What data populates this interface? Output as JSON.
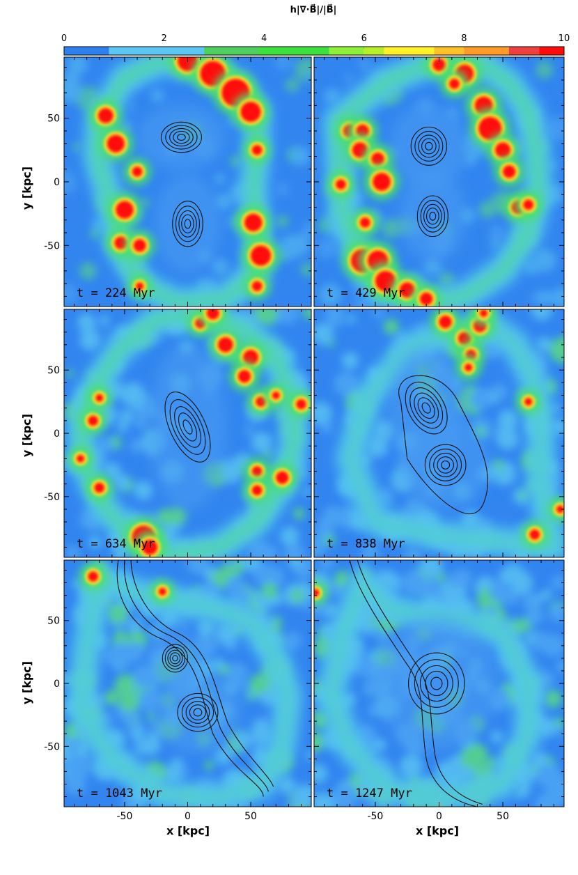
{
  "chart_data": {
    "type": "heatmap",
    "colorbar": {
      "label": "h|∇·B⃗|/|B⃗|",
      "range": [
        0,
        10
      ],
      "tick_labels": [
        "0",
        "2",
        "4",
        "6",
        "8",
        "10"
      ],
      "tick_values": [
        0,
        2,
        4,
        6,
        8,
        10
      ],
      "colors": [
        "#2f80ef",
        "#5cc6f4",
        "#4ecf5f",
        "#3ee03e",
        "#8ef03a",
        "#b7f02a",
        "#fff22a",
        "#ffc12a",
        "#ff9a2c",
        "#ef4040",
        "#ff0b0b"
      ]
    },
    "xlabel": "x [kpc]",
    "ylabel": "y [kpc]",
    "xlim": [
      -98,
      98
    ],
    "ylim": [
      -98,
      98
    ],
    "x_tick_labels": [
      "-50",
      "0",
      "50"
    ],
    "x_tick_values": [
      -50,
      0,
      50
    ],
    "y_tick_labels": [
      "50",
      "0",
      "-50"
    ],
    "y_tick_values": [
      50,
      0,
      -50
    ],
    "panels": [
      {
        "time_label": "t =  224 Myr",
        "cores": [
          {
            "x": -5,
            "y": 35,
            "rx": 16,
            "ry": 12
          },
          {
            "x": 0,
            "y": -33,
            "rx": 12,
            "ry": 18
          }
        ],
        "ring": [
          [
            -70,
            50
          ],
          [
            -72,
            20
          ],
          [
            -60,
            -20
          ],
          [
            -55,
            -50
          ],
          [
            -35,
            -82
          ],
          [
            -8,
            -95
          ],
          [
            30,
            -92
          ],
          [
            55,
            -70
          ],
          [
            55,
            -40
          ],
          [
            52,
            -5
          ],
          [
            55,
            25
          ],
          [
            55,
            55
          ],
          [
            40,
            75
          ],
          [
            10,
            90
          ],
          [
            -20,
            95
          ],
          [
            -50,
            82
          ]
        ],
        "hot_blobs": [
          [
            -65,
            52,
            6
          ],
          [
            -57,
            30,
            7
          ],
          [
            -50,
            -22,
            7
          ],
          [
            -53,
            -48,
            5
          ],
          [
            -38,
            -50,
            5
          ],
          [
            -40,
            8,
            4
          ],
          [
            0,
            95,
            8
          ],
          [
            20,
            85,
            10
          ],
          [
            38,
            70,
            11
          ],
          [
            50,
            55,
            8
          ],
          [
            55,
            25,
            4
          ],
          [
            52,
            -32,
            7
          ],
          [
            58,
            -58,
            8
          ],
          [
            55,
            -82,
            4
          ],
          [
            -38,
            -82,
            3
          ]
        ]
      },
      {
        "time_label": "t =  429 Myr",
        "cores": [
          {
            "x": -8,
            "y": 28,
            "rx": 14,
            "ry": 15
          },
          {
            "x": -5,
            "y": -27,
            "rx": 12,
            "ry": 16
          }
        ],
        "ring": [
          [
            -80,
            48
          ],
          [
            -78,
            10
          ],
          [
            -75,
            -25
          ],
          [
            -65,
            -55
          ],
          [
            -45,
            -85
          ],
          [
            -15,
            -96
          ],
          [
            20,
            -90
          ],
          [
            50,
            -70
          ],
          [
            70,
            -40
          ],
          [
            78,
            -10
          ],
          [
            76,
            25
          ],
          [
            70,
            55
          ],
          [
            55,
            78
          ],
          [
            30,
            95
          ],
          [
            0,
            95
          ],
          [
            -40,
            80
          ]
        ],
        "hot_blobs": [
          [
            0,
            92,
            5
          ],
          [
            20,
            85,
            7
          ],
          [
            12,
            77,
            4
          ],
          [
            35,
            60,
            7
          ],
          [
            40,
            42,
            9
          ],
          [
            50,
            25,
            6
          ],
          [
            55,
            8,
            5
          ],
          [
            62,
            -20,
            5
          ],
          [
            70,
            -18,
            4
          ],
          [
            -70,
            40,
            5
          ],
          [
            -60,
            40,
            5
          ],
          [
            -62,
            25,
            6
          ],
          [
            -48,
            18,
            5
          ],
          [
            -45,
            0,
            7
          ],
          [
            -77,
            -2,
            4
          ],
          [
            -58,
            -32,
            4
          ],
          [
            -60,
            -62,
            9
          ],
          [
            -48,
            -62,
            8
          ],
          [
            -42,
            -78,
            8
          ],
          [
            -25,
            -85,
            6
          ],
          [
            -10,
            -92,
            5
          ]
        ]
      },
      {
        "time_label": "t =  634 Myr",
        "cores": [
          {
            "x": 0,
            "y": 5,
            "rx": 14,
            "ry": 30,
            "angle": -25
          }
        ],
        "ring": [
          [
            -78,
            30
          ],
          [
            -85,
            0
          ],
          [
            -80,
            -30
          ],
          [
            -65,
            -60
          ],
          [
            -40,
            -85
          ],
          [
            -10,
            -96
          ],
          [
            25,
            -90
          ],
          [
            55,
            -70
          ],
          [
            75,
            -40
          ],
          [
            85,
            -5
          ],
          [
            82,
            30
          ],
          [
            70,
            60
          ],
          [
            45,
            82
          ],
          [
            10,
            95
          ],
          [
            -25,
            90
          ],
          [
            -55,
            65
          ]
        ],
        "hot_blobs": [
          [
            10,
            87,
            4
          ],
          [
            20,
            95,
            5
          ],
          [
            30,
            70,
            6
          ],
          [
            50,
            60,
            6
          ],
          [
            45,
            45,
            5
          ],
          [
            58,
            25,
            4
          ],
          [
            70,
            30,
            3
          ],
          [
            90,
            23,
            4
          ],
          [
            55,
            -30,
            4
          ],
          [
            75,
            -35,
            5
          ],
          [
            55,
            -45,
            4
          ],
          [
            -85,
            -20,
            3
          ],
          [
            -70,
            -43,
            4
          ],
          [
            -75,
            10,
            4
          ],
          [
            -70,
            28,
            3
          ],
          [
            -35,
            -82,
            9
          ],
          [
            -30,
            -90,
            6
          ]
        ]
      },
      {
        "time_label": "t =  838 Myr",
        "cores": [
          {
            "x": -10,
            "y": 20,
            "rx": 14,
            "ry": 22,
            "angle": -30
          },
          {
            "x": 5,
            "y": -25,
            "rx": 16,
            "ry": 16
          }
        ],
        "ring": [
          [
            40,
            85
          ],
          [
            60,
            70
          ],
          [
            75,
            40
          ],
          [
            80,
            0
          ],
          [
            80,
            -40
          ],
          [
            85,
            -70
          ],
          [
            90,
            -90
          ],
          [
            -5,
            -80
          ],
          [
            -50,
            -70
          ],
          [
            -70,
            -20
          ],
          [
            -55,
            30
          ],
          [
            -20,
            70
          ]
        ],
        "hot_blobs": [
          [
            5,
            88,
            5
          ],
          [
            20,
            75,
            5
          ],
          [
            32,
            85,
            5
          ],
          [
            35,
            95,
            3
          ],
          [
            25,
            62,
            4
          ],
          [
            23,
            52,
            3
          ],
          [
            95,
            -60,
            3
          ],
          [
            75,
            -80,
            4
          ],
          [
            70,
            25,
            3
          ]
        ]
      },
      {
        "time_label": "t =  1043 Myr",
        "cores": [
          {
            "x": -10,
            "y": 20,
            "rx": 10,
            "ry": 11
          },
          {
            "x": 8,
            "y": -23,
            "rx": 16,
            "ry": 15
          }
        ],
        "ring": [
          [
            -70,
            85
          ],
          [
            -50,
            75
          ],
          [
            -30,
            70
          ],
          [
            20,
            60
          ],
          [
            50,
            50
          ],
          [
            70,
            20
          ],
          [
            80,
            -10
          ],
          [
            75,
            -50
          ],
          [
            60,
            -80
          ],
          [
            20,
            -92
          ],
          [
            -20,
            -88
          ],
          [
            -60,
            -60
          ],
          [
            -85,
            -20
          ],
          [
            -80,
            30
          ]
        ],
        "hot_blobs": [
          [
            -75,
            85,
            4
          ],
          [
            -20,
            73,
            3
          ]
        ]
      },
      {
        "time_label": "t =  1247 Myr",
        "cores": [
          {
            "x": -2,
            "y": 0,
            "rx": 22,
            "ry": 24
          }
        ],
        "ring": [
          [
            -60,
            80
          ],
          [
            -40,
            60
          ],
          [
            -20,
            55
          ],
          [
            20,
            50
          ],
          [
            50,
            40
          ],
          [
            70,
            0
          ],
          [
            70,
            -40
          ],
          [
            50,
            -80
          ],
          [
            10,
            -90
          ],
          [
            -40,
            -85
          ],
          [
            -70,
            -50
          ],
          [
            -85,
            -10
          ],
          [
            -75,
            40
          ]
        ],
        "hot_blobs": [
          [
            -97,
            72,
            3
          ]
        ]
      }
    ]
  }
}
